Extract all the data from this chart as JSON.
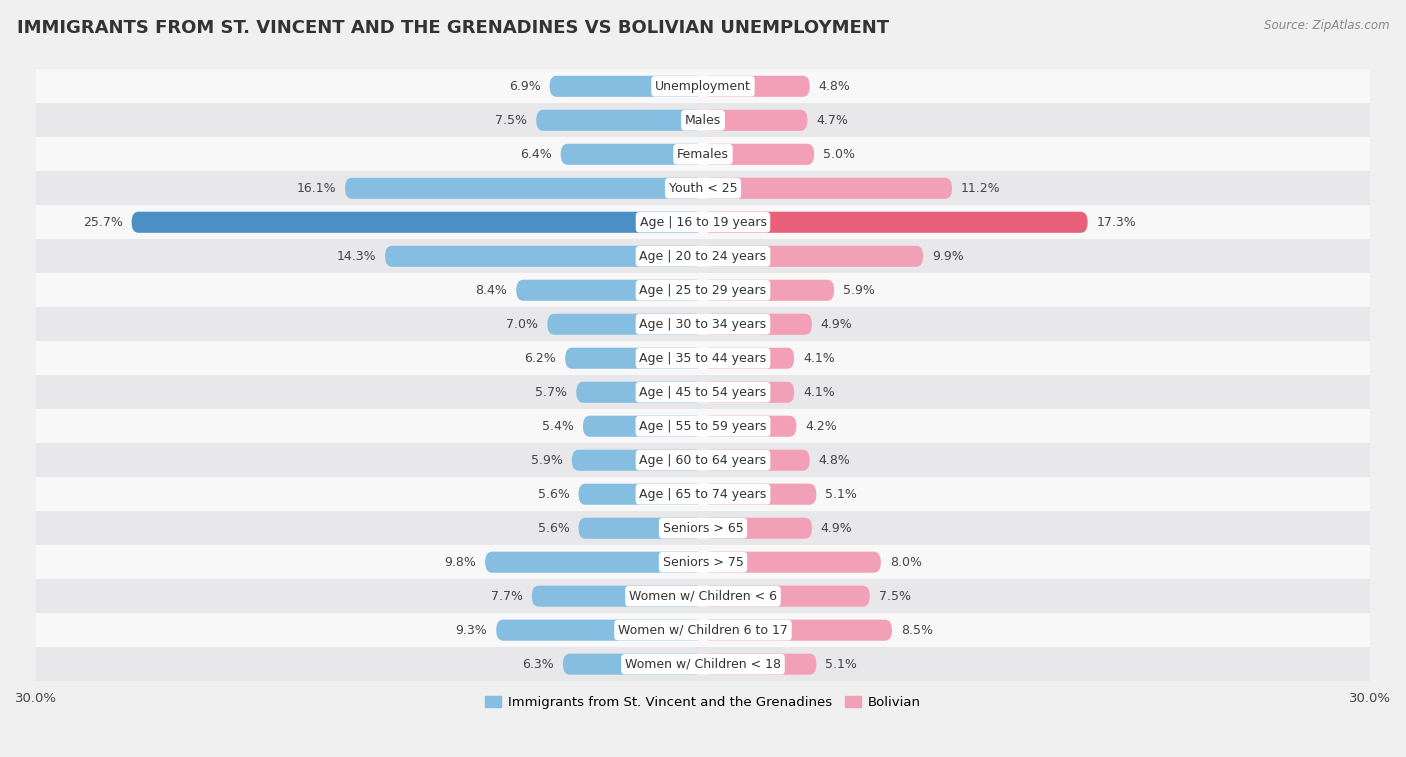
{
  "title": "IMMIGRANTS FROM ST. VINCENT AND THE GRENADINES VS BOLIVIAN UNEMPLOYMENT",
  "source": "Source: ZipAtlas.com",
  "categories": [
    "Unemployment",
    "Males",
    "Females",
    "Youth < 25",
    "Age | 16 to 19 years",
    "Age | 20 to 24 years",
    "Age | 25 to 29 years",
    "Age | 30 to 34 years",
    "Age | 35 to 44 years",
    "Age | 45 to 54 years",
    "Age | 55 to 59 years",
    "Age | 60 to 64 years",
    "Age | 65 to 74 years",
    "Seniors > 65",
    "Seniors > 75",
    "Women w/ Children < 6",
    "Women w/ Children 6 to 17",
    "Women w/ Children < 18"
  ],
  "left_values": [
    6.9,
    7.5,
    6.4,
    16.1,
    25.7,
    14.3,
    8.4,
    7.0,
    6.2,
    5.7,
    5.4,
    5.9,
    5.6,
    5.6,
    9.8,
    7.7,
    9.3,
    6.3
  ],
  "right_values": [
    4.8,
    4.7,
    5.0,
    11.2,
    17.3,
    9.9,
    5.9,
    4.9,
    4.1,
    4.1,
    4.2,
    4.8,
    5.1,
    4.9,
    8.0,
    7.5,
    8.5,
    5.1
  ],
  "left_color": "#85BEE0",
  "right_color": "#F2A0B8",
  "highlight_left_color": "#4A90C4",
  "highlight_right_color": "#E8607A",
  "highlight_index": 4,
  "xlim": 30.0,
  "bg_color": "#f0f0f0",
  "row_color_even": "#f8f8f8",
  "row_color_odd": "#e8e8ea",
  "legend_left": "Immigrants from St. Vincent and the Grenadines",
  "legend_right": "Bolivian",
  "title_fontsize": 13,
  "label_fontsize": 9.0,
  "value_fontsize": 9.0,
  "bar_height": 0.62
}
